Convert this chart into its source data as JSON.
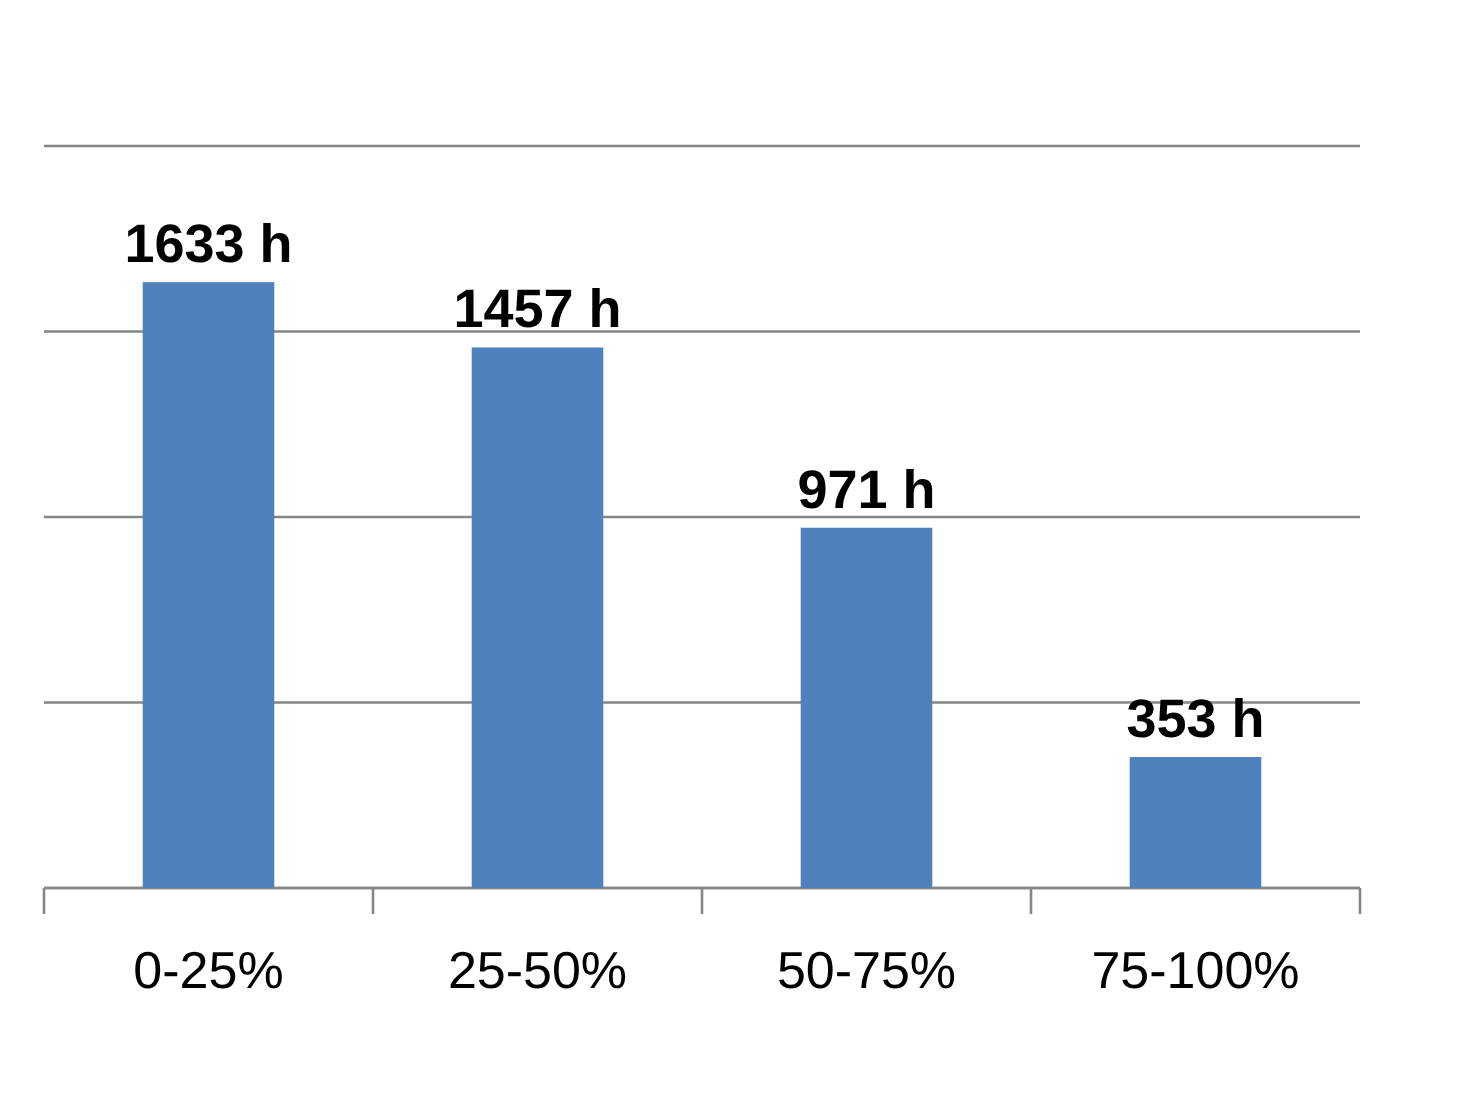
{
  "chart_data": {
    "type": "bar",
    "categories": [
      "0-25%",
      "25-50%",
      "50-75%",
      "75-100%"
    ],
    "values": [
      1633,
      1457,
      971,
      353
    ],
    "color": "#4f81bd",
    "value_labels": [
      "1633 h",
      "1457 h",
      "971 h",
      "353 h"
    ],
    "ylim": [
      0,
      2000
    ],
    "yticks": [
      {
        "value": 0,
        "label": null
      },
      {
        "value": 500,
        "label": null
      },
      {
        "value": 1000,
        "label": null
      },
      {
        "value": 1500,
        "label": null
      },
      {
        "value": 2000,
        "label": null
      }
    ],
    "grid": "y",
    "tick_labels": "x"
  }
}
